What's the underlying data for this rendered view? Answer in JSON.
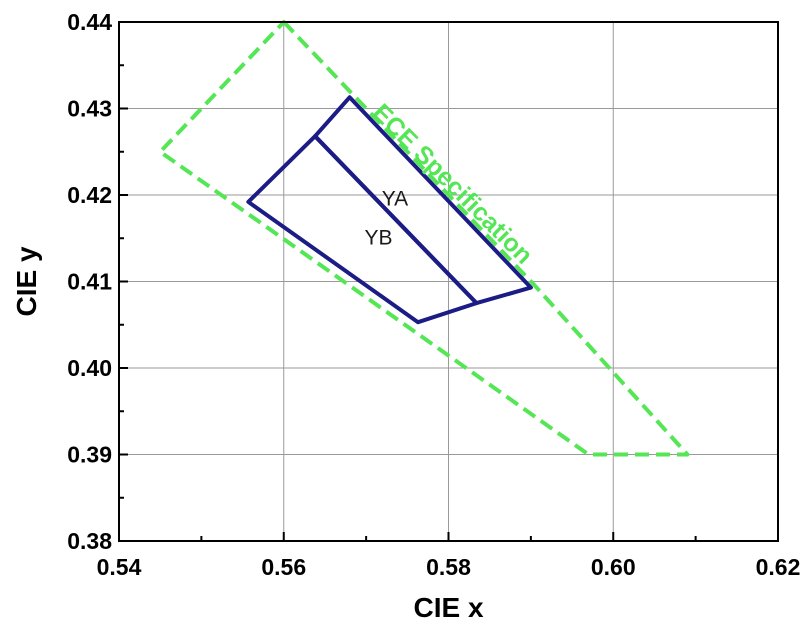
{
  "chart_data": {
    "type": "line",
    "xlabel": "CIE x",
    "ylabel": "CIE y",
    "xlim": [
      0.54,
      0.62
    ],
    "ylim": [
      0.38,
      0.44
    ],
    "xticks": [
      "0.54",
      "0.56",
      "0.58",
      "0.60",
      "0.62"
    ],
    "yticks": [
      "0.38",
      "0.39",
      "0.40",
      "0.41",
      "0.42",
      "0.43",
      "0.44"
    ],
    "grid": true,
    "colors": {
      "ece": "#55e655",
      "regions": "#1c1c86",
      "grid": "#9a9a9a"
    },
    "series": [
      {
        "name": "ECE Specification",
        "style": "dashed",
        "closed": true,
        "points": [
          [
            0.56,
            0.44
          ],
          [
            0.5905,
            0.4095
          ],
          [
            0.609,
            0.39
          ],
          [
            0.597,
            0.39
          ],
          [
            0.545,
            0.425
          ]
        ]
      },
      {
        "name": "YA",
        "style": "solid",
        "closed": true,
        "points": [
          [
            0.568,
            0.4313
          ],
          [
            0.59,
            0.4093
          ],
          [
            0.5834,
            0.4075
          ],
          [
            0.5638,
            0.4268
          ]
        ]
      },
      {
        "name": "YB",
        "style": "solid",
        "closed": true,
        "points": [
          [
            0.5638,
            0.4268
          ],
          [
            0.5834,
            0.4075
          ],
          [
            0.5763,
            0.4053
          ],
          [
            0.5557,
            0.4192
          ]
        ]
      }
    ],
    "annotations": [
      {
        "text": "YA",
        "x": 0.5735,
        "y": 0.4188
      },
      {
        "text": "YB",
        "x": 0.5715,
        "y": 0.4143
      },
      {
        "text": "ECE Specification",
        "x": 0.5798,
        "y": 0.4206,
        "angle": -45
      }
    ]
  }
}
